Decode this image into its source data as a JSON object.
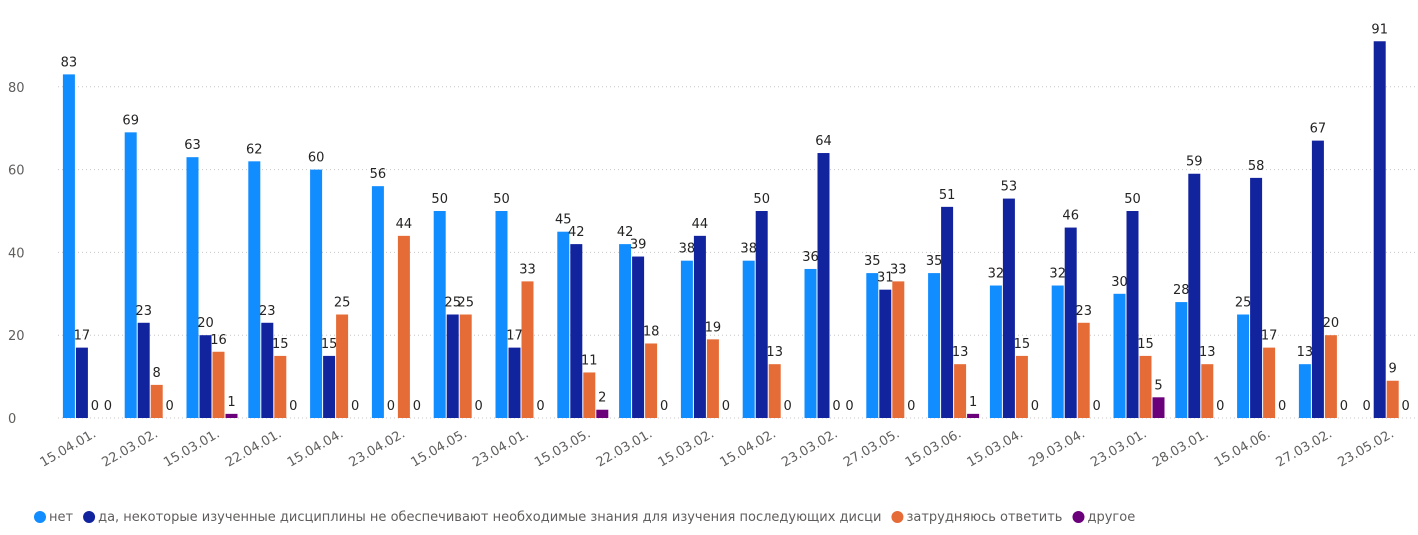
{
  "chart_data": {
    "type": "bar",
    "categories": [
      "15.04.01.",
      "22.03.02.",
      "15.03.01.",
      "22.04.01.",
      "15.04.04.",
      "23.04.02.",
      "15.04.05.",
      "23.04.01.",
      "15.03.05.",
      "22.03.01.",
      "15.03.02.",
      "15.04.02.",
      "23.03.02.",
      "27.03.05.",
      "15.03.06.",
      "15.03.04.",
      "29.03.04.",
      "23.03.01.",
      "28.03.01.",
      "15.04.06.",
      "27.03.02.",
      "23.05.02."
    ],
    "series": [
      {
        "name": "нет",
        "color": "#118DFF",
        "values": [
          83,
          69,
          63,
          62,
          60,
          56,
          50,
          50,
          45,
          42,
          38,
          38,
          36,
          35,
          35,
          32,
          32,
          30,
          28,
          25,
          13,
          0
        ]
      },
      {
        "name": "да, некоторые изученные дисциплины не обеспечивают необходимые знания для изучения последующих дисци",
        "color": "#12239E",
        "values": [
          17,
          23,
          20,
          23,
          15,
          0,
          25,
          17,
          42,
          39,
          44,
          50,
          64,
          31,
          51,
          53,
          46,
          50,
          59,
          58,
          67,
          91
        ]
      },
      {
        "name": "затрудняюсь ответить",
        "color": "#E66C37",
        "values": [
          0,
          8,
          16,
          15,
          25,
          44,
          25,
          33,
          11,
          18,
          19,
          13,
          0,
          33,
          13,
          15,
          23,
          15,
          13,
          17,
          20,
          9
        ]
      },
      {
        "name": "другое",
        "color": "#6B007B",
        "values": [
          0,
          0,
          1,
          0,
          0,
          0,
          0,
          0,
          2,
          0,
          0,
          0,
          0,
          0,
          1,
          0,
          0,
          5,
          0,
          0,
          0,
          0
        ]
      }
    ],
    "ylim": [
      0,
      100
    ],
    "yticks": [
      0,
      20,
      40,
      60,
      80
    ],
    "grid": true,
    "legend": "bottom"
  }
}
